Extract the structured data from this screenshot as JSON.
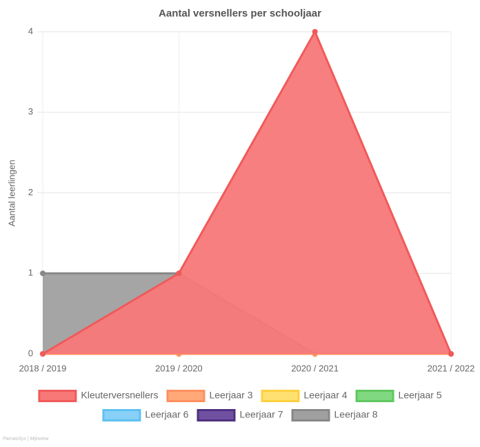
{
  "chart_data": {
    "type": "area",
    "title": "Aantal versnellers per schooljaar",
    "ylabel": "Aantal leerlingen",
    "categories": [
      "2018 / 2019",
      "2019 / 2020",
      "2020 / 2021",
      "2021 / 2022"
    ],
    "series": [
      {
        "name": "Kleuterversnellers",
        "color": "#f87878",
        "border": "#f05a5a",
        "values": [
          0,
          1,
          4,
          0
        ]
      },
      {
        "name": "Leerjaar 3",
        "color": "#ffa878",
        "border": "#ff9060",
        "values": [
          0,
          0,
          0,
          0
        ]
      },
      {
        "name": "Leerjaar 4",
        "color": "#ffe070",
        "border": "#ffd040",
        "values": [
          0,
          0,
          0,
          0
        ]
      },
      {
        "name": "Leerjaar 5",
        "color": "#80d880",
        "border": "#60c860",
        "values": [
          0,
          0,
          0,
          0
        ]
      },
      {
        "name": "Leerjaar 6",
        "color": "#88d0f8",
        "border": "#60c0f0",
        "values": [
          0,
          0,
          0,
          0
        ]
      },
      {
        "name": "Leerjaar 7",
        "color": "#7050a0",
        "border": "#503080",
        "values": [
          0,
          0,
          0,
          0
        ]
      },
      {
        "name": "Leerjaar 8",
        "color": "#a0a0a0",
        "border": "#888888",
        "values": [
          1,
          1,
          0,
          0
        ]
      }
    ],
    "ylim": [
      0,
      4
    ],
    "yticks": [
      0,
      1,
      2,
      3,
      4
    ],
    "grid": true,
    "footer": "ParnasSys | Mijnview"
  }
}
